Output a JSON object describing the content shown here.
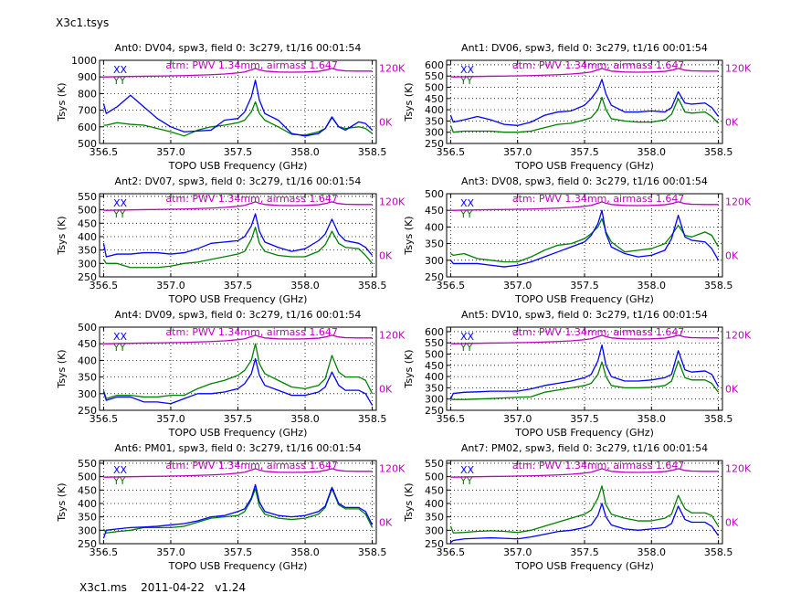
{
  "figure_title": "X3c1.tsys",
  "footer": "X3c1.ms    2011-04-22   v1.24",
  "colors": {
    "XX": "#0000ff",
    "YY": "#008000",
    "atm": "#bf00bf",
    "grid": "#000000"
  },
  "chart_data": {
    "type": "line",
    "xlabel": "TOPO USB Frequency (GHz)",
    "ylabel": "Tsys (K)",
    "xlim": [
      356.47,
      358.53
    ],
    "xticks": [
      356.5,
      357.0,
      357.5,
      358.0,
      358.5
    ],
    "xtick_labels": [
      "356.5",
      "357.0",
      "357.5",
      "358.0",
      "358.5"
    ],
    "grid": true,
    "legend": [
      "XX",
      "YY"
    ],
    "legend_placement": "top-left",
    "x": [
      356.5,
      356.52,
      356.6,
      356.7,
      356.8,
      356.9,
      357.0,
      357.1,
      357.2,
      357.3,
      357.4,
      357.5,
      357.55,
      357.6,
      357.63,
      357.66,
      357.7,
      357.8,
      357.9,
      358.0,
      358.1,
      358.15,
      358.2,
      358.25,
      358.3,
      358.4,
      358.45,
      358.5
    ],
    "atm": {
      "label": "atm: PWV 1.34mm, airmass 1.647",
      "right_ylim": [
        -48,
        137
      ],
      "right_ticks": [
        0,
        120
      ],
      "right_tick_labels": [
        "0K",
        "120K"
      ],
      "values": [
        100,
        100,
        100.5,
        101,
        101.5,
        102,
        102.5,
        103,
        104,
        105,
        106.5,
        109,
        111,
        116,
        119,
        116,
        113,
        111,
        110.5,
        111,
        112.5,
        115,
        119,
        115,
        113.5,
        113,
        113,
        113
      ]
    },
    "panels": [
      {
        "title": "Ant0: DV04,  spw3,  field 0: 3c279,  t1/16  00:01:54",
        "ylim": [
          500,
          1000
        ],
        "yticks": [
          500,
          600,
          700,
          800,
          900,
          1000
        ],
        "XX": [
          740,
          680,
          720,
          790,
          720,
          650,
          600,
          570,
          575,
          580,
          640,
          650,
          690,
          780,
          880,
          760,
          680,
          640,
          560,
          545,
          560,
          590,
          660,
          600,
          580,
          630,
          620,
          580
        ],
        "YY": [
          610,
          610,
          625,
          615,
          610,
          590,
          570,
          545,
          580,
          600,
          610,
          625,
          640,
          690,
          750,
          680,
          640,
          600,
          555,
          550,
          570,
          590,
          655,
          600,
          590,
          600,
          590,
          560
        ]
      },
      {
        "title": "Ant1: DV06,  spw3,  field 0: 3c279,  t1/16  00:01:54",
        "ylim": [
          250,
          620
        ],
        "yticks": [
          250,
          300,
          350,
          400,
          450,
          500,
          550,
          600
        ],
        "XX": [
          375,
          345,
          355,
          370,
          355,
          335,
          330,
          345,
          375,
          390,
          395,
          420,
          450,
          490,
          535,
          470,
          420,
          390,
          390,
          395,
          390,
          410,
          480,
          430,
          425,
          430,
          410,
          370
        ],
        "YY": [
          330,
          300,
          305,
          305,
          305,
          300,
          300,
          305,
          320,
          335,
          340,
          355,
          365,
          400,
          455,
          400,
          360,
          350,
          345,
          345,
          355,
          380,
          450,
          390,
          385,
          390,
          370,
          340
        ]
      },
      {
        "title": "Ant2: DV07,  spw3,  field 0: 3c279,  t1/16  00:01:54",
        "ylim": [
          250,
          560
        ],
        "yticks": [
          250,
          300,
          350,
          400,
          450,
          500,
          550
        ],
        "XX": [
          375,
          325,
          335,
          335,
          340,
          340,
          335,
          340,
          355,
          375,
          380,
          385,
          400,
          440,
          485,
          420,
          380,
          360,
          345,
          355,
          385,
          410,
          465,
          410,
          385,
          375,
          360,
          330
        ],
        "YY": [
          315,
          300,
          300,
          285,
          285,
          285,
          290,
          300,
          305,
          315,
          325,
          335,
          345,
          390,
          435,
          375,
          345,
          330,
          325,
          325,
          345,
          370,
          420,
          375,
          360,
          355,
          330,
          300
        ]
      },
      {
        "title": "Ant3: DV08,  spw3,  field 0: 3c279,  t1/16  00:01:54",
        "ylim": [
          250,
          500
        ],
        "yticks": [
          250,
          300,
          350,
          400,
          450,
          500
        ],
        "XX": [
          300,
          290,
          290,
          290,
          285,
          280,
          285,
          295,
          310,
          325,
          340,
          355,
          375,
          410,
          450,
          380,
          340,
          320,
          310,
          315,
          330,
          365,
          435,
          370,
          360,
          355,
          335,
          300
        ],
        "YY": [
          320,
          315,
          320,
          305,
          300,
          295,
          295,
          310,
          330,
          345,
          350,
          365,
          380,
          400,
          425,
          385,
          355,
          325,
          330,
          335,
          350,
          375,
          405,
          375,
          370,
          385,
          375,
          340
        ]
      },
      {
        "title": "Ant4: DV09,  spw3,  field 0: 3c279,  t1/16  00:01:54",
        "ylim": [
          250,
          500
        ],
        "yticks": [
          250,
          300,
          350,
          400,
          450,
          500
        ],
        "XX": [
          305,
          280,
          290,
          290,
          275,
          275,
          270,
          285,
          300,
          300,
          305,
          315,
          330,
          360,
          405,
          355,
          325,
          310,
          295,
          295,
          305,
          320,
          365,
          325,
          310,
          310,
          300,
          265
        ],
        "YY": [
          310,
          285,
          295,
          295,
          290,
          290,
          295,
          295,
          315,
          330,
          340,
          355,
          370,
          400,
          450,
          390,
          360,
          340,
          320,
          315,
          325,
          345,
          415,
          365,
          350,
          350,
          340,
          300
        ]
      },
      {
        "title": "Ant5: DV10,  spw3,  field 0: 3c279,  t1/16  00:01:54",
        "ylim": [
          250,
          620
        ],
        "yticks": [
          250,
          300,
          350,
          400,
          450,
          500,
          550,
          600
        ],
        "XX": [
          300,
          325,
          330,
          332,
          335,
          335,
          335,
          345,
          360,
          370,
          380,
          395,
          410,
          470,
          540,
          450,
          400,
          380,
          380,
          385,
          395,
          410,
          515,
          430,
          420,
          425,
          410,
          355
        ],
        "YY": [
          300,
          298,
          298,
          300,
          302,
          305,
          308,
          310,
          330,
          340,
          350,
          360,
          370,
          410,
          465,
          400,
          360,
          350,
          350,
          352,
          360,
          380,
          470,
          395,
          385,
          385,
          370,
          330
        ]
      },
      {
        "title": "Ant6: PM01,  spw3,  field 0: 3c279,  t1/16  00:01:54",
        "ylim": [
          250,
          560
        ],
        "yticks": [
          250,
          300,
          350,
          400,
          450,
          500,
          550
        ],
        "XX": [
          270,
          300,
          305,
          310,
          312,
          315,
          320,
          325,
          335,
          350,
          355,
          370,
          380,
          420,
          470,
          405,
          370,
          355,
          350,
          355,
          370,
          390,
          460,
          400,
          385,
          385,
          370,
          320
        ],
        "YY": [
          305,
          290,
          295,
          300,
          310,
          310,
          310,
          315,
          330,
          345,
          350,
          355,
          370,
          415,
          455,
          390,
          360,
          345,
          340,
          345,
          360,
          385,
          455,
          395,
          380,
          380,
          360,
          310
        ]
      },
      {
        "title": "Ant7: PM02,  spw3,  field 0: 3c279,  t1/16  00:01:54",
        "ylim": [
          250,
          560
        ],
        "yticks": [
          250,
          300,
          350,
          400,
          450,
          500,
          550
        ],
        "XX": [
          255,
          262,
          268,
          270,
          272,
          270,
          268,
          275,
          285,
          295,
          300,
          310,
          320,
          355,
          400,
          350,
          320,
          305,
          300,
          305,
          310,
          325,
          390,
          340,
          330,
          330,
          315,
          280
        ],
        "YY": [
          315,
          290,
          292,
          296,
          298,
          296,
          292,
          300,
          315,
          330,
          345,
          360,
          375,
          420,
          465,
          395,
          360,
          345,
          335,
          335,
          345,
          360,
          430,
          380,
          365,
          365,
          355,
          315
        ]
      }
    ]
  }
}
